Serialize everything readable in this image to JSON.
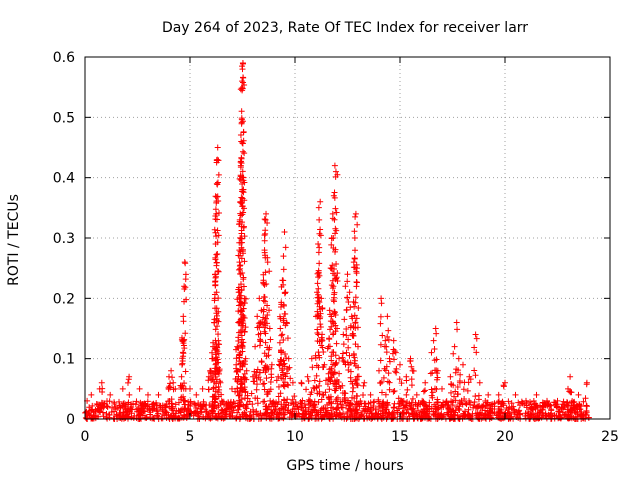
{
  "chart_data": {
    "type": "scatter",
    "title": "Day 264 of 2023, Rate Of TEC Index for receiver larr",
    "xlabel": "GPS time / hours",
    "ylabel": "ROTI / TECUs",
    "xlim": [
      0,
      25
    ],
    "ylim": [
      0,
      0.6
    ],
    "xticks": [
      0,
      5,
      10,
      15,
      20,
      25
    ],
    "xtick_labels": [
      "0",
      "5",
      "10",
      "15",
      "20",
      "25"
    ],
    "yticks": [
      0,
      0.1,
      0.2,
      0.3,
      0.4,
      0.5,
      0.6
    ],
    "ytick_labels": [
      "0",
      "0.1",
      "0.2",
      "0.3",
      "0.4",
      "0.5",
      "0.6"
    ],
    "grid": true,
    "marker": "plus",
    "color": "#ff0000",
    "series": [
      {
        "points": [
          [
            0.1,
            0.03
          ],
          [
            0.3,
            0.04
          ],
          [
            0.7,
            0.05
          ],
          [
            0.8,
            0.06
          ],
          [
            1.2,
            0.04
          ],
          [
            1.8,
            0.05
          ],
          [
            2.1,
            0.07
          ],
          [
            2.6,
            0.05
          ],
          [
            3.0,
            0.04
          ],
          [
            3.5,
            0.04
          ],
          [
            4.0,
            0.07
          ],
          [
            4.1,
            0.08
          ],
          [
            4.2,
            0.06
          ],
          [
            4.3,
            0.05
          ],
          [
            4.6,
            0.07
          ],
          [
            4.62,
            0.09
          ],
          [
            4.65,
            0.13
          ],
          [
            4.68,
            0.17
          ],
          [
            4.72,
            0.22
          ],
          [
            4.75,
            0.26
          ],
          [
            4.8,
            0.05
          ],
          [
            5.0,
            0.05
          ],
          [
            5.3,
            0.04
          ],
          [
            5.6,
            0.05
          ],
          [
            5.9,
            0.07
          ],
          [
            6.0,
            0.08
          ],
          [
            6.05,
            0.1
          ],
          [
            6.1,
            0.12
          ],
          [
            6.15,
            0.16
          ],
          [
            6.18,
            0.2
          ],
          [
            6.2,
            0.24
          ],
          [
            6.22,
            0.29
          ],
          [
            6.25,
            0.34
          ],
          [
            6.28,
            0.39
          ],
          [
            6.3,
            0.43
          ],
          [
            6.32,
            0.45
          ],
          [
            6.35,
            0.13
          ],
          [
            6.4,
            0.08
          ],
          [
            6.45,
            0.06
          ],
          [
            7.0,
            0.05
          ],
          [
            7.2,
            0.09
          ],
          [
            7.25,
            0.12
          ],
          [
            7.3,
            0.16
          ],
          [
            7.32,
            0.21
          ],
          [
            7.35,
            0.28
          ],
          [
            7.37,
            0.33
          ],
          [
            7.4,
            0.36
          ],
          [
            7.42,
            0.42
          ],
          [
            7.44,
            0.46
          ],
          [
            7.46,
            0.51
          ],
          [
            7.48,
            0.56
          ],
          [
            7.5,
            0.58
          ],
          [
            7.52,
            0.59
          ],
          [
            7.55,
            0.4
          ],
          [
            7.6,
            0.2
          ],
          [
            7.65,
            0.1
          ],
          [
            7.7,
            0.08
          ],
          [
            8.0,
            0.07
          ],
          [
            8.1,
            0.12
          ],
          [
            8.2,
            0.17
          ],
          [
            8.3,
            0.2
          ],
          [
            8.4,
            0.18
          ],
          [
            8.5,
            0.23
          ],
          [
            8.55,
            0.28
          ],
          [
            8.6,
            0.33
          ],
          [
            8.62,
            0.34
          ],
          [
            8.7,
            0.26
          ],
          [
            8.8,
            0.15
          ],
          [
            8.9,
            0.09
          ],
          [
            9.2,
            0.07
          ],
          [
            9.3,
            0.15
          ],
          [
            9.35,
            0.19
          ],
          [
            9.4,
            0.23
          ],
          [
            9.45,
            0.27
          ],
          [
            9.5,
            0.31
          ],
          [
            9.55,
            0.21
          ],
          [
            9.6,
            0.16
          ],
          [
            9.7,
            0.1
          ],
          [
            9.9,
            0.06
          ],
          [
            10.3,
            0.06
          ],
          [
            10.6,
            0.07
          ],
          [
            10.8,
            0.1
          ],
          [
            11.0,
            0.17
          ],
          [
            11.05,
            0.21
          ],
          [
            11.1,
            0.29
          ],
          [
            11.15,
            0.33
          ],
          [
            11.2,
            0.36
          ],
          [
            11.25,
            0.2
          ],
          [
            11.3,
            0.13
          ],
          [
            11.4,
            0.09
          ],
          [
            11.6,
            0.12
          ],
          [
            11.65,
            0.18
          ],
          [
            11.7,
            0.25
          ],
          [
            11.75,
            0.3
          ],
          [
            11.8,
            0.34
          ],
          [
            11.85,
            0.37
          ],
          [
            11.9,
            0.42
          ],
          [
            11.95,
            0.41
          ],
          [
            12.0,
            0.15
          ],
          [
            12.1,
            0.1
          ],
          [
            12.3,
            0.14
          ],
          [
            12.4,
            0.22
          ],
          [
            12.5,
            0.24
          ],
          [
            12.6,
            0.21
          ],
          [
            12.7,
            0.17
          ],
          [
            12.8,
            0.26
          ],
          [
            12.85,
            0.3
          ],
          [
            12.9,
            0.34
          ],
          [
            12.95,
            0.25
          ],
          [
            13.0,
            0.12
          ],
          [
            13.3,
            0.06
          ],
          [
            13.6,
            0.04
          ],
          [
            14.0,
            0.08
          ],
          [
            14.1,
            0.2
          ],
          [
            14.3,
            0.13
          ],
          [
            14.4,
            0.17
          ],
          [
            14.5,
            0.1
          ],
          [
            14.7,
            0.13
          ],
          [
            14.8,
            0.11
          ],
          [
            15.0,
            0.09
          ],
          [
            15.3,
            0.07
          ],
          [
            15.5,
            0.1
          ],
          [
            15.6,
            0.08
          ],
          [
            15.8,
            0.04
          ],
          [
            16.2,
            0.06
          ],
          [
            16.5,
            0.11
          ],
          [
            16.6,
            0.13
          ],
          [
            16.7,
            0.15
          ],
          [
            16.8,
            0.08
          ],
          [
            17.0,
            0.05
          ],
          [
            17.4,
            0.07
          ],
          [
            17.6,
            0.12
          ],
          [
            17.7,
            0.16
          ],
          [
            17.8,
            0.1
          ],
          [
            18.0,
            0.09
          ],
          [
            18.3,
            0.07
          ],
          [
            18.6,
            0.14
          ],
          [
            18.8,
            0.06
          ],
          [
            19.2,
            0.04
          ],
          [
            19.7,
            0.04
          ],
          [
            20.0,
            0.06
          ],
          [
            20.5,
            0.04
          ],
          [
            21.0,
            0.03
          ],
          [
            21.5,
            0.04
          ],
          [
            22.0,
            0.03
          ],
          [
            22.5,
            0.03
          ],
          [
            23.0,
            0.05
          ],
          [
            23.1,
            0.07
          ],
          [
            23.5,
            0.04
          ],
          [
            23.9,
            0.06
          ]
        ],
        "baseline_band": [
          0,
          0.03
        ]
      }
    ]
  }
}
